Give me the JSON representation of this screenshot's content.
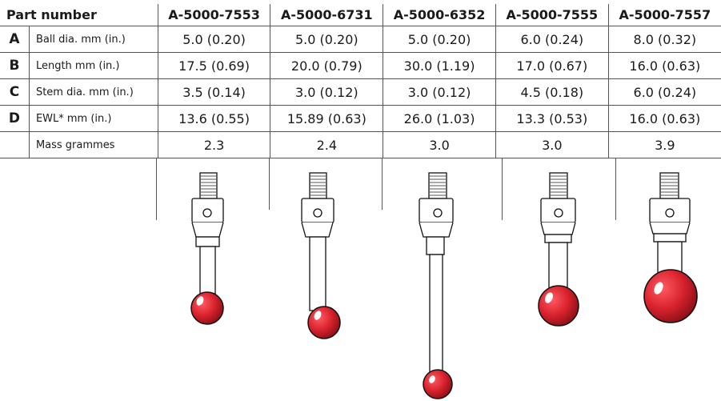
{
  "header": {
    "part_number_label": "Part number",
    "parts": [
      "A-5000-7553",
      "A-5000-6731",
      "A-5000-6352",
      "A-5000-7555",
      "A-5000-7557"
    ]
  },
  "rows": [
    {
      "letter": "A",
      "label": "Ball dia. mm (in.)",
      "values": [
        "5.0 (0.20)",
        "5.0 (0.20)",
        "5.0 (0.20)",
        "6.0 (0.24)",
        "8.0 (0.32)"
      ]
    },
    {
      "letter": "B",
      "label": "Length mm (in.)",
      "values": [
        "17.5 (0.69)",
        "20.0 (0.79)",
        "30.0 (1.19)",
        "17.0 (0.67)",
        "16.0 (0.63)"
      ]
    },
    {
      "letter": "C",
      "label": "Stem dia. mm (in.)",
      "values": [
        "3.5 (0.14)",
        "3.0 (0.12)",
        "3.0 (0.12)",
        "4.5 (0.18)",
        "6.0 (0.24)"
      ]
    },
    {
      "letter": "D",
      "label": "EWL* mm (in.)",
      "values": [
        "13.6 (0.55)",
        "15.89 (0.63)",
        "26.0 (1.03)",
        "13.3 (0.53)",
        "16.0 (0.63)"
      ]
    },
    {
      "letter": "",
      "label": "Mass grammes",
      "values": [
        "2.3",
        "2.4",
        "3.0",
        "3.0",
        "3.9"
      ]
    }
  ],
  "colors": {
    "ruby": "#d9232e",
    "ruby_dark": "#a8141d",
    "rule": "#555555"
  }
}
